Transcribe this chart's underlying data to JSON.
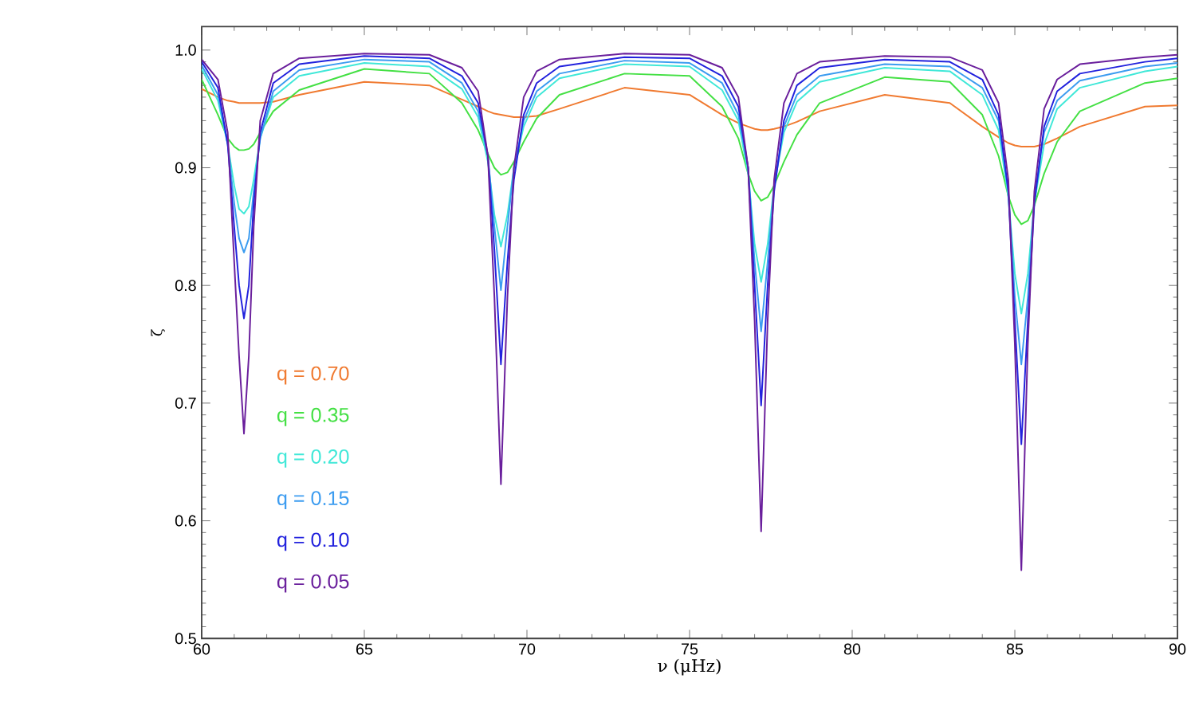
{
  "chart_data": {
    "type": "line",
    "xlabel": "ν (μHz)",
    "ylabel": "ζ",
    "x": [
      60,
      60.5,
      60.8,
      61.0,
      61.15,
      61.3,
      61.45,
      61.6,
      61.8,
      62.2,
      63,
      65,
      67,
      68,
      68.5,
      68.8,
      69.0,
      69.2,
      69.4,
      69.6,
      69.9,
      70.3,
      71,
      73,
      75,
      76,
      76.5,
      76.8,
      77.0,
      77.2,
      77.4,
      77.6,
      77.9,
      78.3,
      79,
      81,
      83,
      84,
      84.5,
      84.8,
      85.0,
      85.2,
      85.4,
      85.6,
      85.9,
      86.3,
      87,
      89,
      90
    ],
    "series": [
      {
        "name": "q = 0.70",
        "color": "#f07a30",
        "values": [
          0.967,
          0.96,
          0.957,
          0.956,
          0.955,
          0.955,
          0.955,
          0.955,
          0.955,
          0.956,
          0.962,
          0.973,
          0.97,
          0.958,
          0.952,
          0.948,
          0.946,
          0.945,
          0.944,
          0.943,
          0.943,
          0.944,
          0.95,
          0.968,
          0.962,
          0.945,
          0.938,
          0.935,
          0.933,
          0.932,
          0.932,
          0.933,
          0.935,
          0.939,
          0.948,
          0.962,
          0.955,
          0.935,
          0.926,
          0.921,
          0.919,
          0.918,
          0.918,
          0.918,
          0.92,
          0.925,
          0.935,
          0.952,
          0.953
        ]
      },
      {
        "name": "q = 0.35",
        "color": "#44e044",
        "values": [
          0.975,
          0.945,
          0.925,
          0.918,
          0.915,
          0.915,
          0.916,
          0.92,
          0.93,
          0.948,
          0.966,
          0.984,
          0.98,
          0.955,
          0.932,
          0.912,
          0.9,
          0.894,
          0.896,
          0.905,
          0.922,
          0.942,
          0.962,
          0.98,
          0.978,
          0.952,
          0.925,
          0.895,
          0.88,
          0.872,
          0.875,
          0.885,
          0.905,
          0.928,
          0.955,
          0.977,
          0.973,
          0.945,
          0.91,
          0.876,
          0.86,
          0.852,
          0.855,
          0.868,
          0.895,
          0.922,
          0.948,
          0.972,
          0.976
        ]
      },
      {
        "name": "q = 0.20",
        "color": "#40e8d8",
        "values": [
          0.984,
          0.957,
          0.92,
          0.885,
          0.865,
          0.861,
          0.867,
          0.89,
          0.925,
          0.96,
          0.978,
          0.989,
          0.986,
          0.967,
          0.943,
          0.905,
          0.86,
          0.833,
          0.86,
          0.9,
          0.935,
          0.96,
          0.976,
          0.988,
          0.986,
          0.966,
          0.94,
          0.895,
          0.835,
          0.803,
          0.835,
          0.885,
          0.93,
          0.956,
          0.973,
          0.985,
          0.982,
          0.962,
          0.932,
          0.875,
          0.81,
          0.776,
          0.81,
          0.87,
          0.92,
          0.95,
          0.968,
          0.982,
          0.986
        ]
      },
      {
        "name": "q = 0.15",
        "color": "#3c9cf0",
        "values": [
          0.987,
          0.962,
          0.92,
          0.87,
          0.84,
          0.828,
          0.84,
          0.88,
          0.925,
          0.965,
          0.983,
          0.992,
          0.99,
          0.972,
          0.948,
          0.91,
          0.85,
          0.796,
          0.85,
          0.9,
          0.94,
          0.965,
          0.98,
          0.991,
          0.989,
          0.972,
          0.945,
          0.9,
          0.82,
          0.761,
          0.82,
          0.885,
          0.935,
          0.962,
          0.978,
          0.988,
          0.986,
          0.968,
          0.94,
          0.88,
          0.79,
          0.733,
          0.79,
          0.875,
          0.93,
          0.957,
          0.974,
          0.986,
          0.989
        ]
      },
      {
        "name": "q = 0.10",
        "color": "#2222dd",
        "values": [
          0.99,
          0.968,
          0.92,
          0.85,
          0.8,
          0.772,
          0.8,
          0.87,
          0.93,
          0.972,
          0.988,
          0.995,
          0.993,
          0.978,
          0.955,
          0.91,
          0.83,
          0.733,
          0.82,
          0.89,
          0.945,
          0.972,
          0.986,
          0.994,
          0.993,
          0.978,
          0.952,
          0.9,
          0.8,
          0.698,
          0.8,
          0.88,
          0.94,
          0.97,
          0.985,
          0.992,
          0.99,
          0.975,
          0.945,
          0.88,
          0.77,
          0.665,
          0.77,
          0.87,
          0.935,
          0.965,
          0.98,
          0.99,
          0.993
        ]
      },
      {
        "name": "q = 0.05",
        "color": "#6a1f9c",
        "values": [
          0.992,
          0.975,
          0.93,
          0.82,
          0.74,
          0.674,
          0.74,
          0.85,
          0.94,
          0.98,
          0.993,
          0.997,
          0.996,
          0.985,
          0.965,
          0.91,
          0.79,
          0.631,
          0.79,
          0.9,
          0.96,
          0.982,
          0.992,
          0.997,
          0.996,
          0.985,
          0.96,
          0.9,
          0.77,
          0.591,
          0.77,
          0.89,
          0.955,
          0.98,
          0.99,
          0.995,
          0.994,
          0.983,
          0.955,
          0.89,
          0.75,
          0.558,
          0.75,
          0.88,
          0.95,
          0.975,
          0.988,
          0.994,
          0.996
        ]
      }
    ],
    "xlim": [
      60,
      90
    ],
    "xticks": [
      60,
      65,
      70,
      75,
      80,
      85,
      90
    ],
    "ylim": [
      0.5,
      1.02
    ],
    "yticks": [
      0.5,
      0.6,
      0.7,
      0.8,
      0.9,
      {
        "value": 1.0,
        "label": "1.0"
      }
    ],
    "legend": "center left",
    "grid": false,
    "marker": "none",
    "line_style": "solid"
  }
}
